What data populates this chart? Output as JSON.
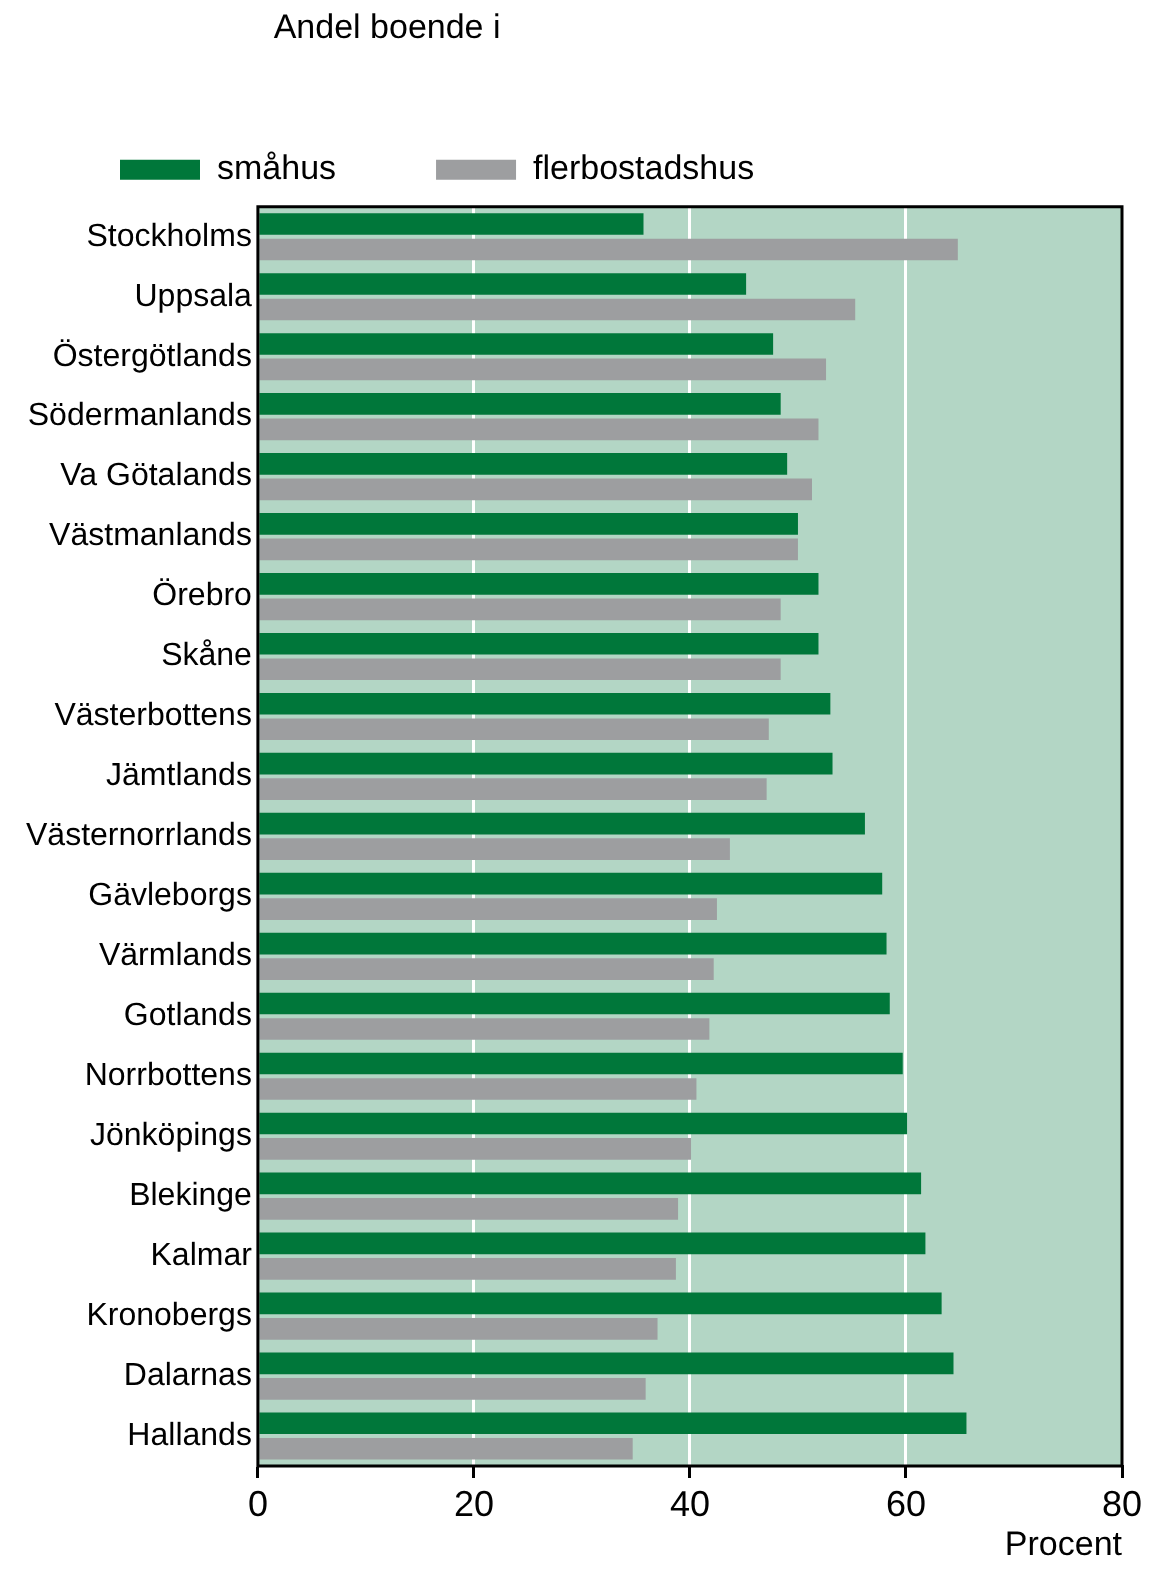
{
  "chart_data": {
    "type": "bar",
    "orientation": "horizontal",
    "legend_title": "Andel boende i",
    "legend": "top",
    "xlabel": "Procent",
    "categories": [
      "Stockholms",
      "Uppsala",
      "Östergötlands",
      "Södermanlands",
      "Va Götalands",
      "Västmanlands",
      "Örebro",
      "Skåne",
      "Västerbottens",
      "Jämtlands",
      "Västernorrlands",
      "Gävleborgs",
      "Värmlands",
      "Gotlands",
      "Norrbottens",
      "Jönköpings",
      "Blekinge",
      "Kalmar",
      "Kronobergs",
      "Dalarnas",
      "Hallands"
    ],
    "series": [
      {
        "name": "småhus",
        "color": "#00773a",
        "values": [
          35.7,
          45.2,
          47.7,
          48.4,
          49.0,
          50.0,
          51.9,
          51.9,
          53.0,
          53.2,
          56.2,
          57.8,
          58.2,
          58.5,
          59.7,
          60.1,
          61.4,
          61.8,
          63.3,
          64.4,
          65.6
        ]
      },
      {
        "name": "flerbostadshus",
        "color": "#9d9ea0",
        "values": [
          64.8,
          55.3,
          52.6,
          51.9,
          51.3,
          50.0,
          48.4,
          48.4,
          47.3,
          47.1,
          43.7,
          42.5,
          42.2,
          41.8,
          40.6,
          40.1,
          38.9,
          38.7,
          37.0,
          35.9,
          34.7
        ]
      }
    ],
    "xlim": [
      0,
      80
    ],
    "xticks": [
      0,
      20,
      40,
      60,
      80
    ],
    "grid": "x"
  }
}
